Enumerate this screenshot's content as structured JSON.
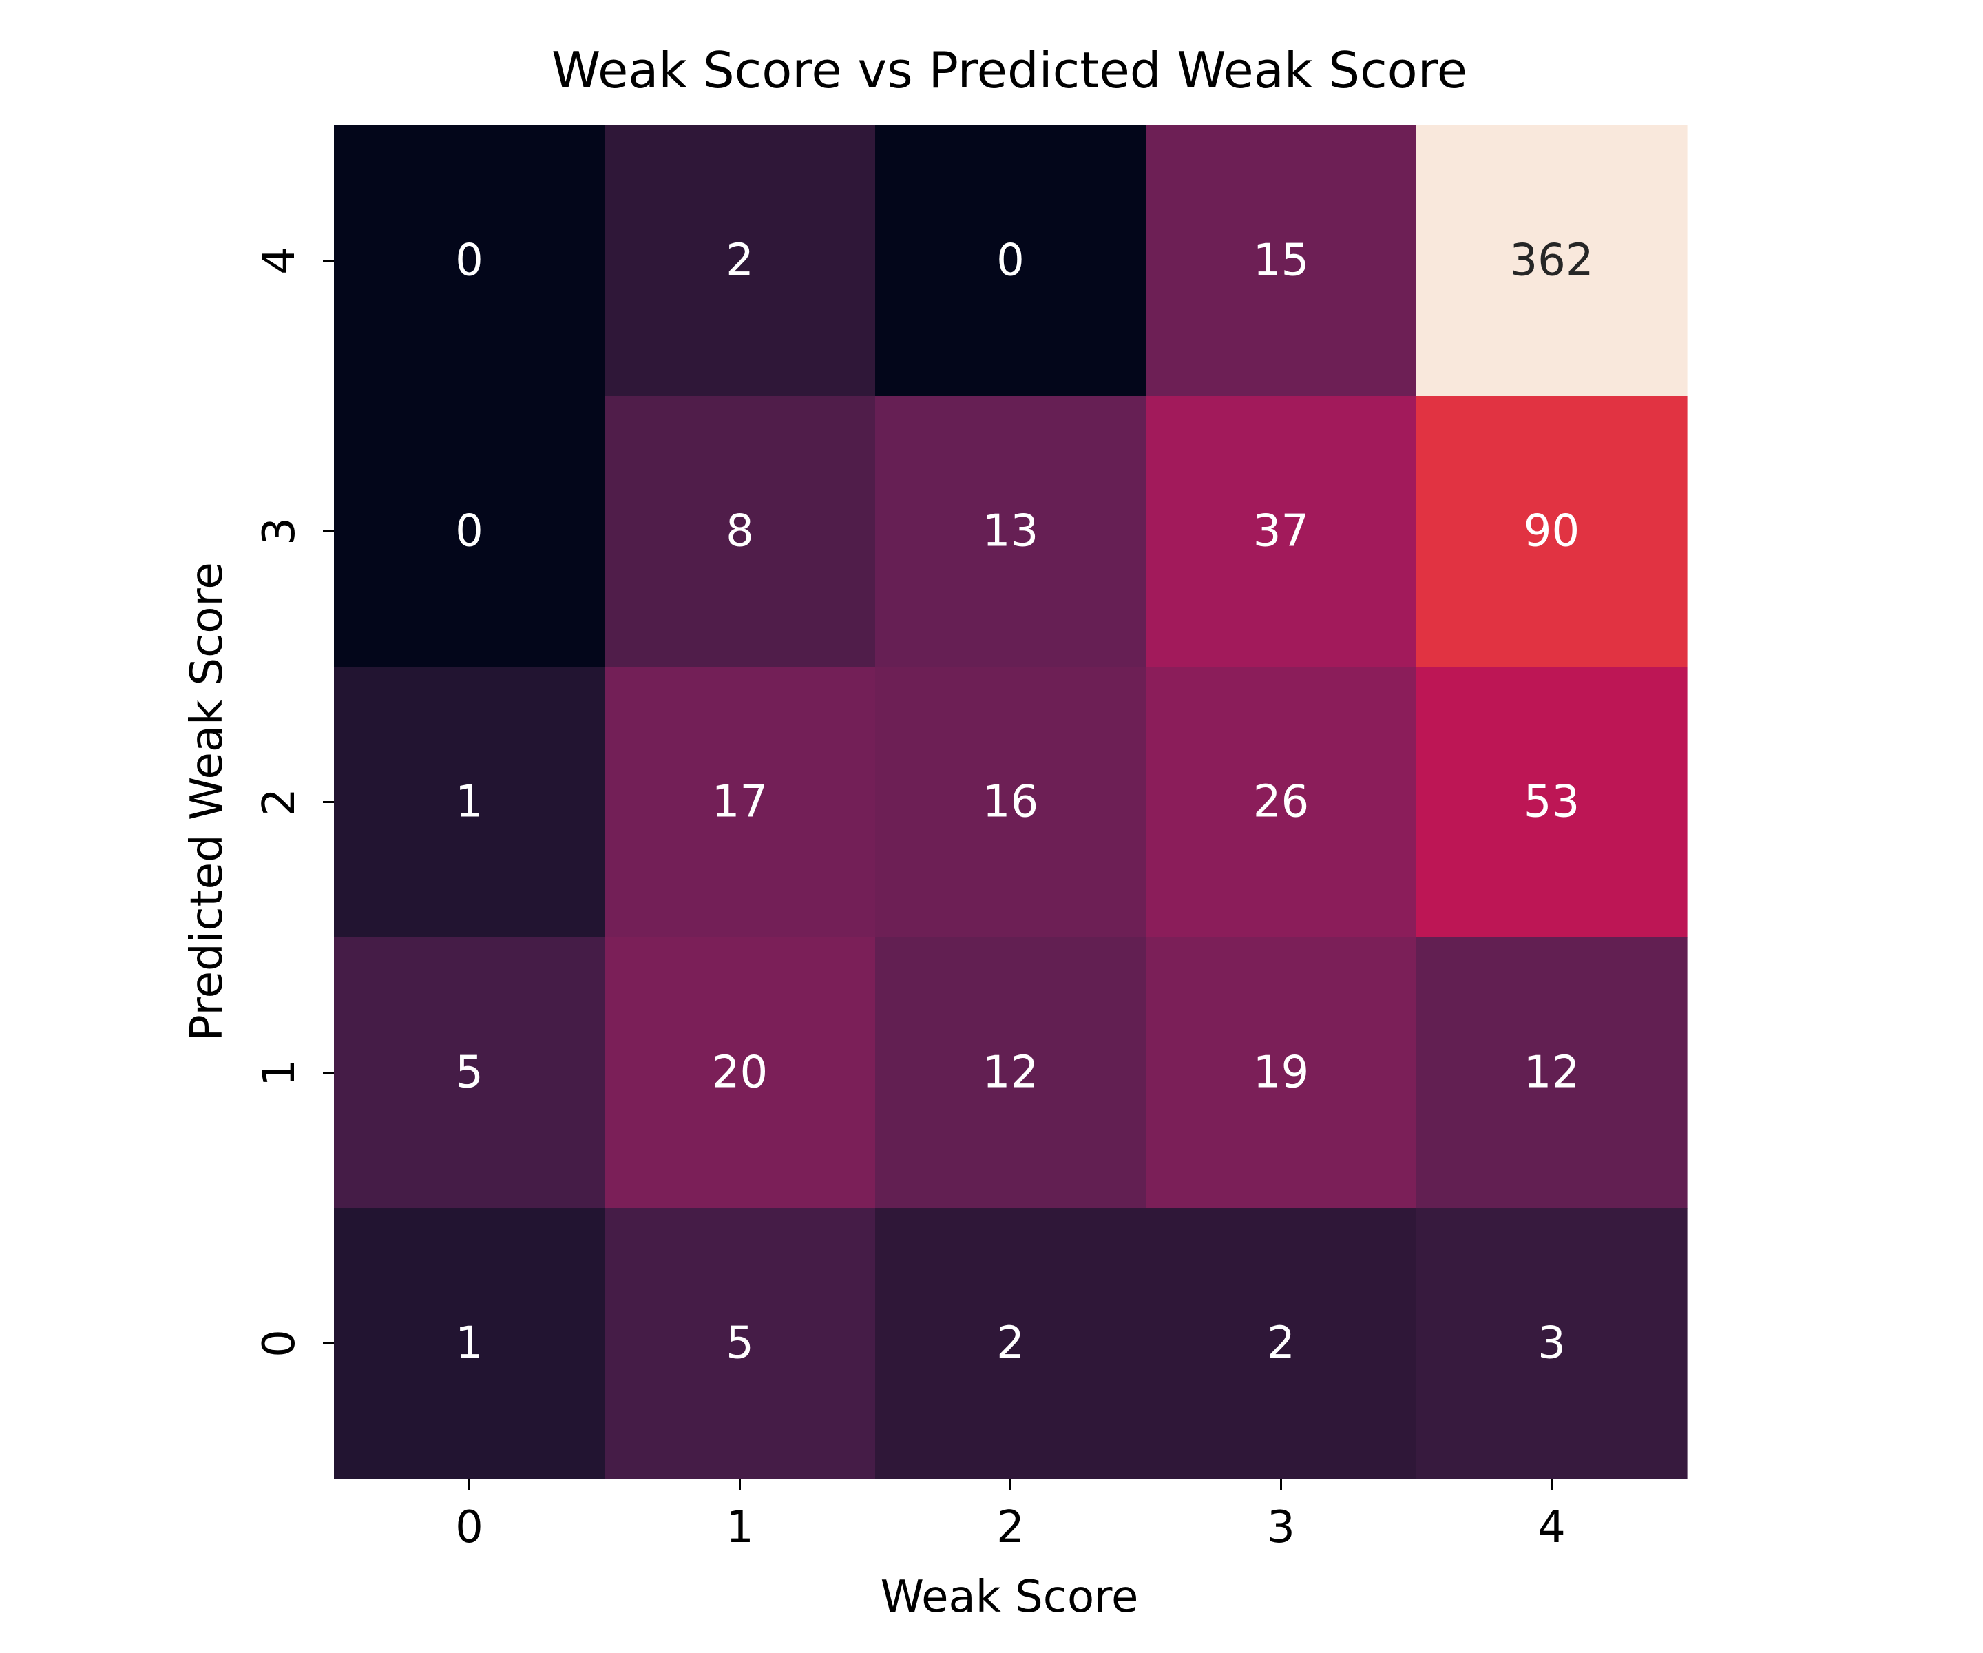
{
  "chart_data": {
    "type": "heatmap",
    "title": "Weak Score vs Predicted Weak Score",
    "xlabel": "Weak Score",
    "ylabel": "Predicted Weak Score",
    "x_categories": [
      "0",
      "1",
      "2",
      "3",
      "4"
    ],
    "y_categories": [
      "4",
      "3",
      "2",
      "1",
      "0"
    ],
    "values": [
      [
        0,
        2,
        0,
        15,
        362
      ],
      [
        0,
        8,
        13,
        37,
        90
      ],
      [
        1,
        17,
        16,
        26,
        53
      ],
      [
        5,
        20,
        12,
        19,
        12
      ],
      [
        1,
        5,
        2,
        2,
        3
      ]
    ],
    "cell_colors": [
      [
        "#03061a",
        "#2f1738",
        "#03061a",
        "#6d1f55",
        "#f9e8dc"
      ],
      [
        "#03061a",
        "#501d4a",
        "#661f54",
        "#a21a5b",
        "#e13342"
      ],
      [
        "#221431",
        "#731f57",
        "#6d1f55",
        "#8b1d5a",
        "#bd1655"
      ],
      [
        "#451c47",
        "#7b1f58",
        "#621f52",
        "#7b1f58",
        "#621f52"
      ],
      [
        "#221431",
        "#451c47",
        "#2f1738",
        "#2f1738",
        "#371a3e"
      ]
    ],
    "annotation_colors": {
      "on_dark": "#ffffff",
      "on_light": "#262626"
    },
    "colorscale": "rocket",
    "colorbar": false,
    "grid": false,
    "legend": "none"
  }
}
